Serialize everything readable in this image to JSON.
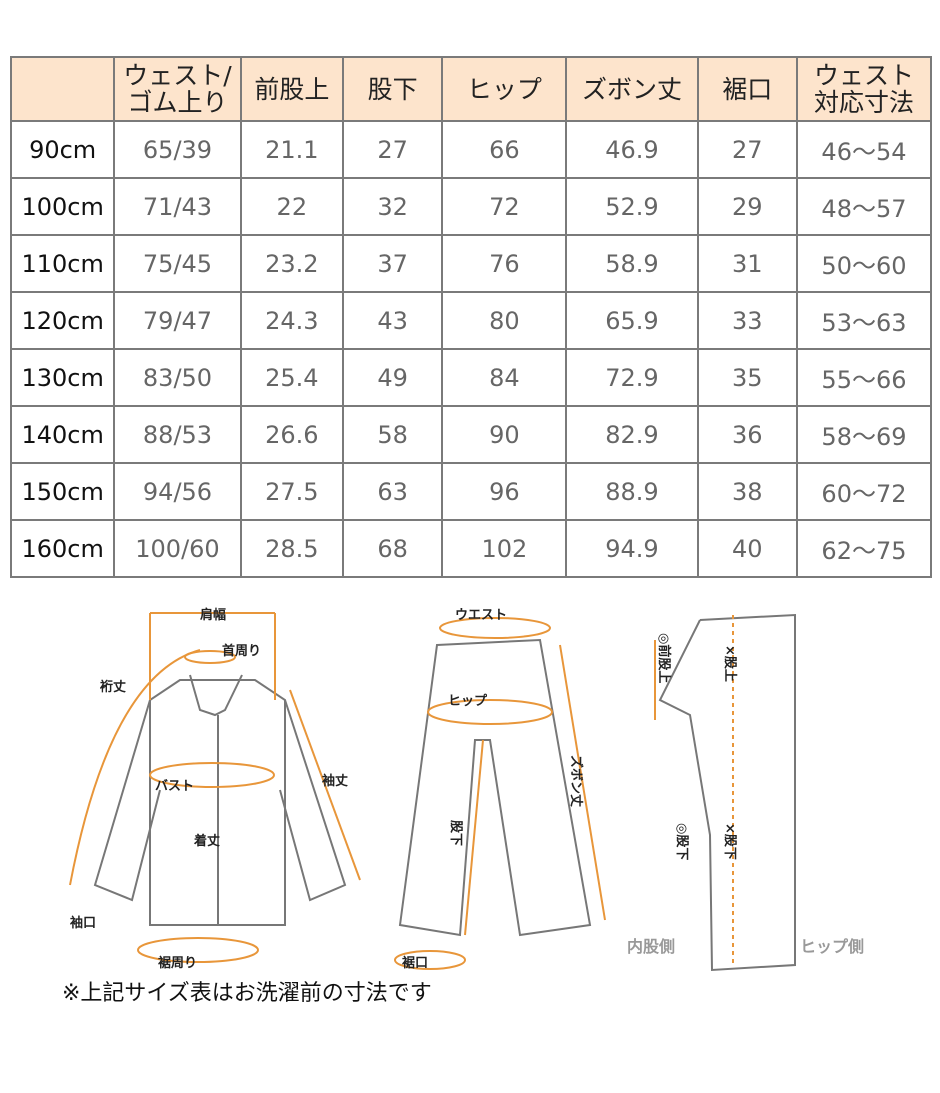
{
  "table": {
    "headers": [
      "",
      "ウェスト/\nゴム上り",
      "前股上",
      "股下",
      "ヒップ",
      "ズボン丈",
      "裾口",
      "ウェスト\n対応寸法"
    ],
    "rows": [
      [
        "90cm",
        "65/39",
        "21.1",
        "27",
        "66",
        "46.9",
        "27",
        "46〜54"
      ],
      [
        "100cm",
        "71/43",
        "22",
        "32",
        "72",
        "52.9",
        "29",
        "48〜57"
      ],
      [
        "110cm",
        "75/45",
        "23.2",
        "37",
        "76",
        "58.9",
        "31",
        "50〜60"
      ],
      [
        "120cm",
        "79/47",
        "24.3",
        "43",
        "80",
        "65.9",
        "33",
        "53〜63"
      ],
      [
        "130cm",
        "83/50",
        "25.4",
        "49",
        "84",
        "72.9",
        "35",
        "55〜66"
      ],
      [
        "140cm",
        "88/53",
        "26.6",
        "58",
        "90",
        "82.9",
        "36",
        "58〜69"
      ],
      [
        "150cm",
        "94/56",
        "27.5",
        "63",
        "96",
        "88.9",
        "38",
        "60〜72"
      ],
      [
        "160cm",
        "100/60",
        "28.5",
        "68",
        "102",
        "94.9",
        "40",
        "62〜75"
      ]
    ]
  },
  "diagram": {
    "shirt": {
      "shoulder": "肩幅",
      "neck": "首周り",
      "yuki": "裄丈",
      "bust": "バスト",
      "sleeve": "袖丈",
      "length": "着丈",
      "cuff": "袖口",
      "hem": "裾周り"
    },
    "pants": {
      "waist": "ウエスト",
      "hip": "ヒップ",
      "length": "ズボン丈",
      "inseam": "股下",
      "hem": "裾口"
    },
    "side": {
      "front_rise": "◎前股上",
      "rise": "×股上",
      "inseam_o": "◎股下",
      "inseam_x": "×股下",
      "inner": "内股側",
      "hip_side": "ヒップ側"
    }
  },
  "note": "※上記サイズ表はお洗濯前の寸法です",
  "colors": {
    "header_bg": "#fde4cc",
    "accent": "#e8963a"
  }
}
